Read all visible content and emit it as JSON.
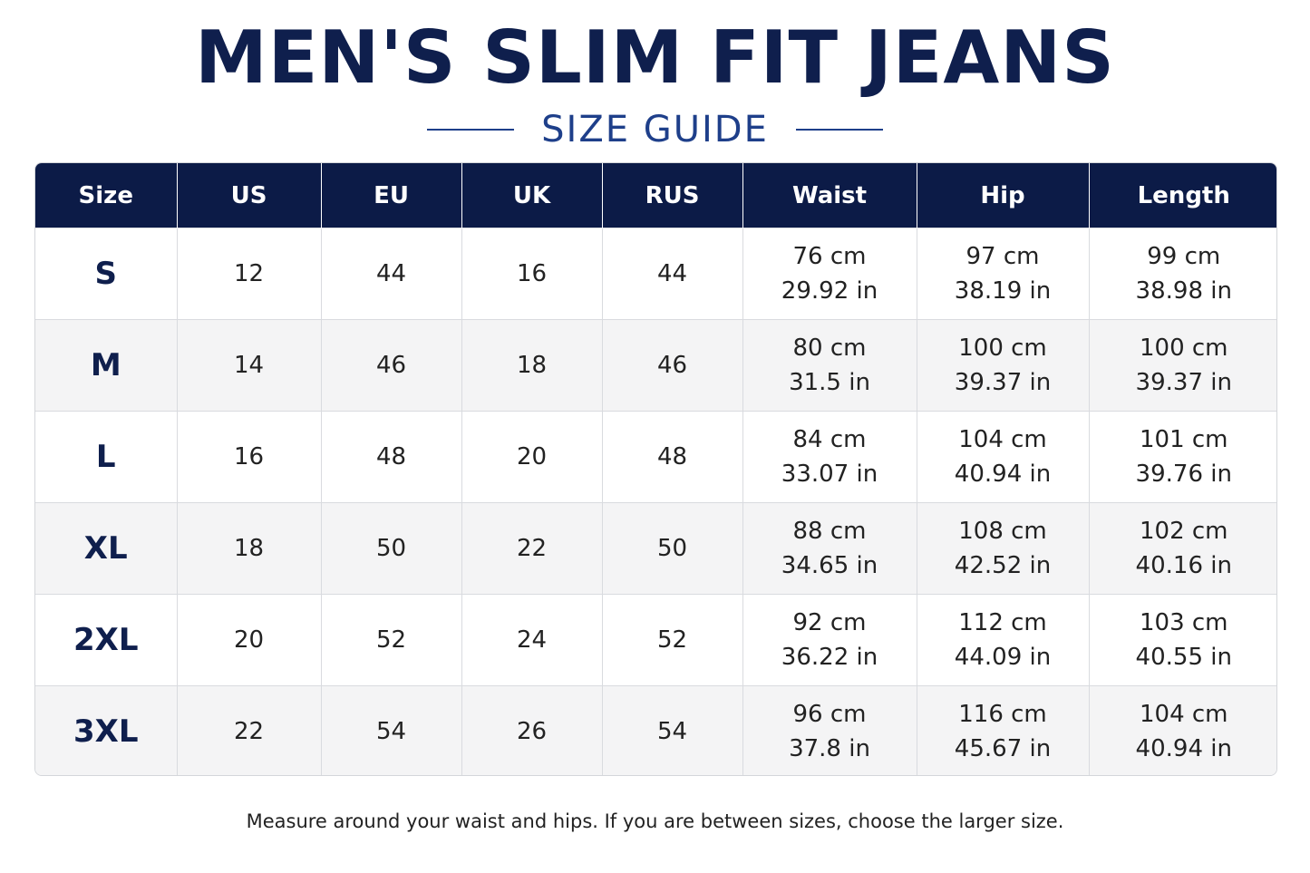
{
  "title": "MEN'S SLIM FIT JEANS",
  "subtitle": "SIZE GUIDE",
  "table": {
    "headers": [
      "Size",
      "US",
      "EU",
      "UK",
      "RUS",
      "Waist",
      "Hip",
      "Length"
    ],
    "rows": [
      {
        "size": "S",
        "us": "12",
        "eu": "44",
        "uk": "16",
        "rus": "44",
        "waist_cm": "76 cm",
        "waist_in": "29.92 in",
        "hip_cm": "97 cm",
        "hip_in": "38.19 in",
        "length_cm": "99 cm",
        "length_in": "38.98 in"
      },
      {
        "size": "M",
        "us": "14",
        "eu": "46",
        "uk": "18",
        "rus": "46",
        "waist_cm": "80 cm",
        "waist_in": "31.5 in",
        "hip_cm": "100 cm",
        "hip_in": "39.37 in",
        "length_cm": "100 cm",
        "length_in": "39.37 in"
      },
      {
        "size": "L",
        "us": "16",
        "eu": "48",
        "uk": "20",
        "rus": "48",
        "waist_cm": "84 cm",
        "waist_in": "33.07 in",
        "hip_cm": "104 cm",
        "hip_in": "40.94 in",
        "length_cm": "101 cm",
        "length_in": "39.76 in"
      },
      {
        "size": "XL",
        "us": "18",
        "eu": "50",
        "uk": "22",
        "rus": "50",
        "waist_cm": "88 cm",
        "waist_in": "34.65 in",
        "hip_cm": "108 cm",
        "hip_in": "42.52 in",
        "length_cm": "102 cm",
        "length_in": "40.16 in"
      },
      {
        "size": "2XL",
        "us": "20",
        "eu": "52",
        "uk": "24",
        "rus": "52",
        "waist_cm": "92 cm",
        "waist_in": "36.22 in",
        "hip_cm": "112 cm",
        "hip_in": "44.09 in",
        "length_cm": "103 cm",
        "length_in": "40.55 in"
      },
      {
        "size": "3XL",
        "us": "22",
        "eu": "54",
        "uk": "26",
        "rus": "54",
        "waist_cm": "96 cm",
        "waist_in": "37.8 in",
        "hip_cm": "116 cm",
        "hip_in": "45.67 in",
        "length_cm": "104 cm",
        "length_in": "40.94 in"
      }
    ]
  },
  "footnote": "Measure around your waist and hips. If you are between sizes, choose the larger size.",
  "colors": {
    "header_bg": "#0c1b47",
    "title": "#0f1f4d",
    "subtitle": "#1e3f8a",
    "alt_row": "#f4f4f5"
  }
}
